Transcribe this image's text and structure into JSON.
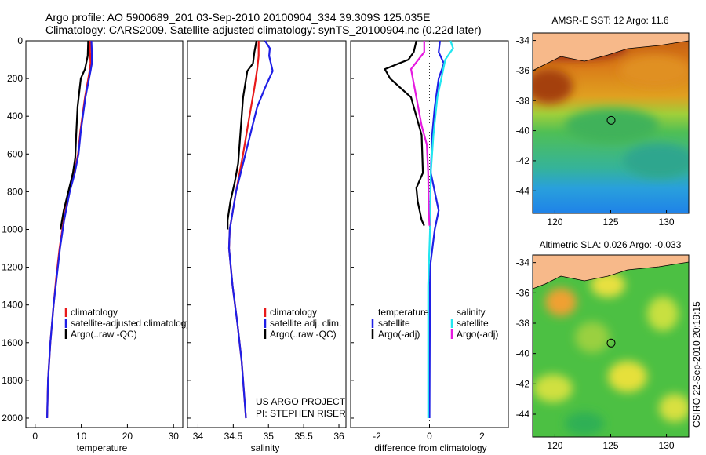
{
  "figure": {
    "title_line1": "Argo profile: AO 5900689_201 03-Sep-2010 20100904_334 39.309S 125.035E",
    "title_line2": "Climatology: CARS2009. Satellite-adjusted climatology: synTS_20100904.nc (0.22d later)",
    "side_label": "CSIRO 22-Sep-2010 20:19:15",
    "credit_line1": "US ARGO PROJECT",
    "credit_line2": "PI: STEPHEN RISER"
  },
  "colors": {
    "climatology": "#e8191a",
    "satellite": "#1f1fe6",
    "argo": "#000000",
    "salinity_satellite": "#22e6f0",
    "salinity_argo": "#e619e0",
    "land": "#f7b98a"
  },
  "chart_data": [
    {
      "type": "line",
      "xlabel": "temperature",
      "ylabel": "",
      "xlim": [
        -2,
        32
      ],
      "ylim": [
        2050,
        0
      ],
      "xticks": [
        0,
        10,
        20,
        30
      ],
      "yticks": [
        0,
        200,
        400,
        600,
        800,
        1000,
        1200,
        1400,
        1600,
        1800,
        2000
      ],
      "legend": [
        "climatology",
        "satellite-adjusted climatology",
        "Argo(..raw -QC)"
      ],
      "series": [
        {
          "name": "climatology",
          "color": "#e8191a",
          "points": [
            [
              11.9,
              0
            ],
            [
              11.9,
              60
            ],
            [
              12.0,
              120
            ],
            [
              11.8,
              160
            ],
            [
              10.8,
              300
            ],
            [
              9.8,
              480
            ],
            [
              9.3,
              600
            ],
            [
              8.5,
              700
            ],
            [
              7.4,
              800
            ],
            [
              6.2,
              950
            ],
            [
              5.3,
              1100
            ],
            [
              4.6,
              1250
            ],
            [
              4.0,
              1400
            ],
            [
              3.3,
              1600
            ],
            [
              2.8,
              1800
            ],
            [
              2.6,
              2000
            ]
          ]
        },
        {
          "name": "satellite-adjusted climatology",
          "color": "#1f1fe6",
          "points": [
            [
              12.2,
              0
            ],
            [
              12.3,
              60
            ],
            [
              12.3,
              120
            ],
            [
              12.0,
              160
            ],
            [
              10.9,
              300
            ],
            [
              9.9,
              480
            ],
            [
              9.4,
              600
            ],
            [
              8.6,
              700
            ],
            [
              7.5,
              800
            ],
            [
              6.3,
              950
            ],
            [
              5.4,
              1100
            ],
            [
              4.7,
              1250
            ],
            [
              4.0,
              1400
            ],
            [
              3.3,
              1600
            ],
            [
              2.8,
              1800
            ],
            [
              2.6,
              2000
            ]
          ]
        },
        {
          "name": "Argo(..raw -QC)",
          "color": "#000000",
          "points": [
            [
              11.5,
              0
            ],
            [
              11.4,
              80
            ],
            [
              10.8,
              150
            ],
            [
              9.9,
              200
            ],
            [
              9.2,
              350
            ],
            [
              8.9,
              500
            ],
            [
              8.7,
              620
            ],
            [
              8.2,
              700
            ],
            [
              7.2,
              800
            ],
            [
              6.2,
              900
            ],
            [
              5.5,
              1000
            ]
          ]
        }
      ]
    },
    {
      "type": "line",
      "xlabel": "salinity",
      "ylabel": "",
      "xlim": [
        33.85,
        36.1
      ],
      "ylim": [
        2050,
        0
      ],
      "xticks": [
        34,
        34.5,
        35,
        35.5,
        36
      ],
      "yticks": [
        0,
        200,
        400,
        600,
        800,
        1000,
        1200,
        1400,
        1600,
        1800,
        2000
      ],
      "legend": [
        "climatology",
        "satellite adj. clim.",
        "Argo(..raw -QC)"
      ],
      "series": [
        {
          "name": "climatology",
          "color": "#e8191a",
          "points": [
            [
              34.86,
              0
            ],
            [
              34.86,
              80
            ],
            [
              34.84,
              150
            ],
            [
              34.8,
              250
            ],
            [
              34.73,
              400
            ],
            [
              34.64,
              600
            ],
            [
              34.54,
              800
            ],
            [
              34.45,
              1000
            ],
            [
              34.44,
              1100
            ],
            [
              34.49,
              1300
            ],
            [
              34.56,
              1500
            ],
            [
              34.62,
              1700
            ],
            [
              34.66,
              1900
            ],
            [
              34.68,
              2000
            ]
          ]
        },
        {
          "name": "satellite adj. clim.",
          "color": "#1f1fe6",
          "points": [
            [
              34.95,
              0
            ],
            [
              35.02,
              40
            ],
            [
              35.01,
              80
            ],
            [
              35.06,
              160
            ],
            [
              34.95,
              250
            ],
            [
              34.84,
              350
            ],
            [
              34.74,
              500
            ],
            [
              34.64,
              650
            ],
            [
              34.54,
              800
            ],
            [
              34.45,
              1000
            ],
            [
              34.44,
              1100
            ],
            [
              34.49,
              1300
            ],
            [
              34.56,
              1500
            ],
            [
              34.62,
              1700
            ],
            [
              34.66,
              1900
            ],
            [
              34.68,
              2000
            ]
          ]
        },
        {
          "name": "Argo(..raw -QC)",
          "color": "#000000",
          "points": [
            [
              34.83,
              0
            ],
            [
              34.8,
              60
            ],
            [
              34.78,
              120
            ],
            [
              34.7,
              160
            ],
            [
              34.64,
              300
            ],
            [
              34.6,
              500
            ],
            [
              34.57,
              650
            ],
            [
              34.52,
              750
            ],
            [
              34.46,
              850
            ],
            [
              34.42,
              950
            ],
            [
              34.42,
              1000
            ]
          ]
        }
      ]
    },
    {
      "type": "line",
      "xlabel": "difference from climatology",
      "ylabel": "",
      "xlim": [
        -3,
        3
      ],
      "ylim": [
        2050,
        0
      ],
      "xticks": [
        -2,
        0,
        2
      ],
      "yticks": [
        0,
        200,
        400,
        600,
        800,
        1000,
        1200,
        1400,
        1600,
        1800,
        2000
      ],
      "legend_headers": [
        "temperature",
        "salinity"
      ],
      "legend": [
        "satellite",
        "Argo(-adj)",
        "satellite",
        "Argo(-adj)"
      ],
      "series": [
        {
          "name": "satellite",
          "group": "temperature",
          "color": "#1f1fe6",
          "points": [
            [
              0.4,
              0
            ],
            [
              0.35,
              60
            ],
            [
              0.55,
              120
            ],
            [
              0.35,
              200
            ],
            [
              0.2,
              350
            ],
            [
              0.1,
              500
            ],
            [
              0.05,
              700
            ],
            [
              0.2,
              800
            ],
            [
              0.35,
              900
            ],
            [
              0.2,
              1000
            ],
            [
              0.02,
              1200
            ],
            [
              0.0,
              2000
            ]
          ]
        },
        {
          "name": "satellite",
          "group": "salinity",
          "color": "#22e6f0",
          "points": [
            [
              0.8,
              0
            ],
            [
              0.9,
              40
            ],
            [
              0.6,
              100
            ],
            [
              0.45,
              200
            ],
            [
              0.3,
              300
            ],
            [
              0.15,
              500
            ],
            [
              0.05,
              700
            ],
            [
              0.02,
              1000
            ],
            [
              -0.05,
              1300
            ],
            [
              -0.05,
              1700
            ],
            [
              -0.05,
              2000
            ]
          ]
        },
        {
          "name": "Argo(-adj)",
          "group": "temperature",
          "color": "#000000",
          "points": [
            [
              -0.5,
              0
            ],
            [
              -0.6,
              60
            ],
            [
              -0.8,
              100
            ],
            [
              -1.7,
              150
            ],
            [
              -1.5,
              200
            ],
            [
              -0.7,
              300
            ],
            [
              -0.3,
              500
            ],
            [
              -0.25,
              700
            ],
            [
              -0.5,
              780
            ],
            [
              -0.45,
              850
            ],
            [
              -0.3,
              950
            ],
            [
              -0.2,
              980
            ]
          ]
        },
        {
          "name": "Argo(-adj)",
          "group": "salinity",
          "color": "#e619e0",
          "points": [
            [
              -0.2,
              0
            ],
            [
              -0.2,
              60
            ],
            [
              -0.7,
              150
            ],
            [
              -0.5,
              300
            ],
            [
              -0.3,
              450
            ],
            [
              -0.1,
              550
            ],
            [
              -0.05,
              700
            ],
            [
              -0.03,
              900
            ],
            [
              0.0,
              980
            ]
          ]
        }
      ]
    },
    {
      "type": "heatmap",
      "title": "AMSR-E SST: 12 Argo: 11.6",
      "xlim": [
        118,
        132
      ],
      "ylim": [
        -45.5,
        -33.5
      ],
      "xticks": [
        120,
        125,
        130
      ],
      "yticks": [
        -34,
        -36,
        -38,
        -40,
        -42,
        -44
      ],
      "marker": [
        125.035,
        -39.309
      ]
    },
    {
      "type": "heatmap",
      "title": "Altimetric SLA: 0.026 Argo: -0.033",
      "xlim": [
        118,
        132
      ],
      "ylim": [
        -45.5,
        -33.5
      ],
      "xticks": [
        120,
        125,
        130
      ],
      "yticks": [
        -34,
        -36,
        -38,
        -40,
        -42,
        -44
      ],
      "marker": [
        125.035,
        -39.309
      ]
    }
  ]
}
